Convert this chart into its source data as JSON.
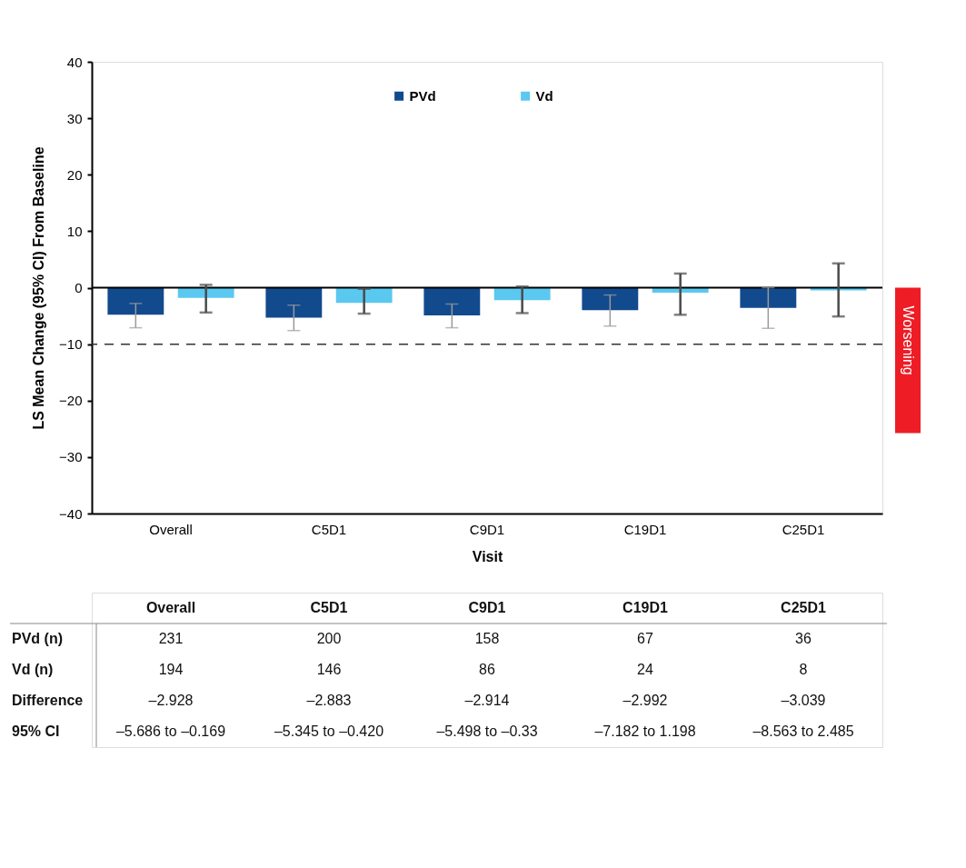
{
  "chart_data": [
    {
      "type": "bar",
      "xlabel": "Visit",
      "ylabel": "LS Mean Change (95% CI) From Baseline",
      "categories": [
        "Overall",
        "C5D1",
        "C9D1",
        "C19D1",
        "C25D1"
      ],
      "series": [
        {
          "name": "PVd",
          "color": "#124a8e",
          "values": [
            -4.8,
            -5.3,
            -4.9,
            -4.0,
            -3.6
          ],
          "errors": [
            [
              -7.1,
              -2.8
            ],
            [
              -7.6,
              -3.1
            ],
            [
              -7.1,
              -2.9
            ],
            [
              -6.8,
              -1.3
            ],
            [
              -7.2,
              0.0
            ]
          ]
        },
        {
          "name": "Vd",
          "color": "#5bc8f0",
          "values": [
            -1.8,
            -2.7,
            -2.2,
            -0.9,
            -0.5
          ],
          "errors": [
            [
              -4.4,
              0.5
            ],
            [
              -4.6,
              -0.2
            ],
            [
              -4.5,
              0.2
            ],
            [
              -4.8,
              2.5
            ],
            [
              -5.1,
              4.3
            ]
          ]
        }
      ],
      "ylim": [
        -40,
        40
      ],
      "yticks": [
        -40,
        -30,
        -20,
        -10,
        0,
        10,
        20,
        30,
        40
      ],
      "ref_lines": [
        {
          "axis": "y",
          "value": -10,
          "line_style": "dashed",
          "color": "#333333"
        }
      ],
      "annotations": [
        "Worsening"
      ],
      "legend": "top",
      "grid": false
    },
    {
      "type": "other",
      "categories": [
        "Overall",
        "C5D1",
        "C9D1",
        "C19D1",
        "C25D1"
      ],
      "y_categories": [
        "PVd (n)",
        "Vd (n)",
        "Difference",
        "95% CI"
      ],
      "cell_labels": [
        [
          "231",
          "200",
          "158",
          "67",
          "36"
        ],
        [
          "194",
          "146",
          "86",
          "24",
          "8"
        ],
        [
          "–2.928",
          "–2.883",
          "–2.914",
          "–2.992",
          "–3.039"
        ],
        [
          "–5.686 to –0.169",
          "–5.345 to –0.420",
          "–5.498 to –0.33",
          "–7.182 to 1.198",
          "–8.563 to 2.485"
        ]
      ]
    }
  ]
}
